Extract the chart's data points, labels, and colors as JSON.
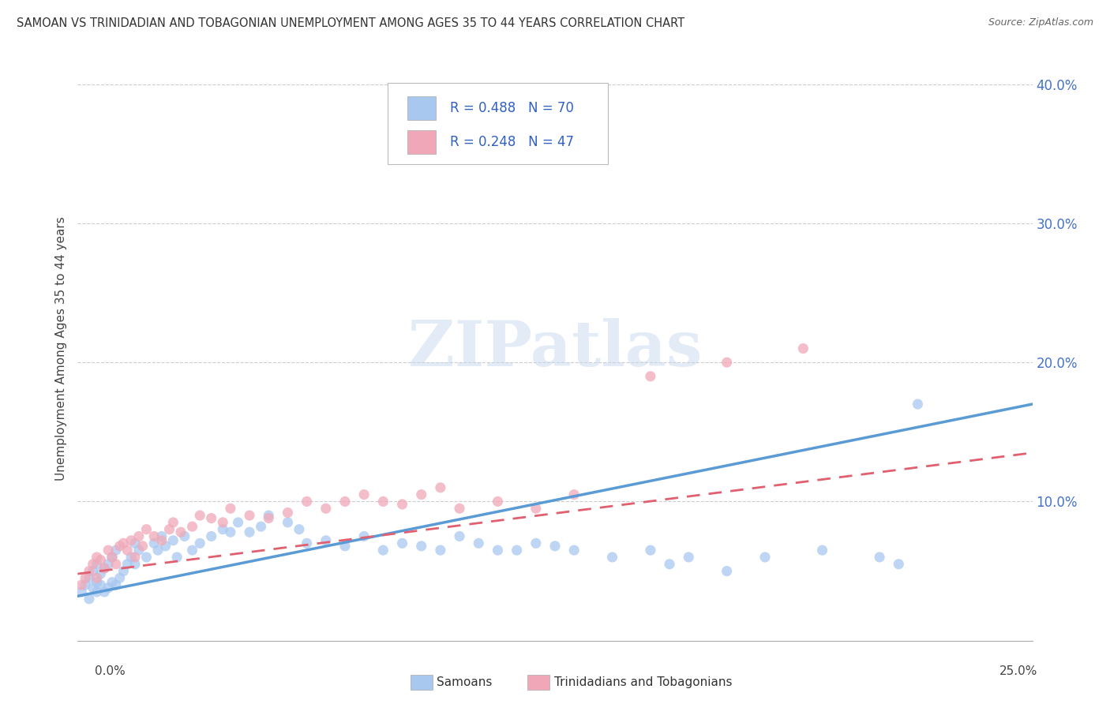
{
  "title": "SAMOAN VS TRINIDADIAN AND TOBAGONIAN UNEMPLOYMENT AMONG AGES 35 TO 44 YEARS CORRELATION CHART",
  "source": "Source: ZipAtlas.com",
  "ylabel": "Unemployment Among Ages 35 to 44 years",
  "xlim": [
    0.0,
    0.25
  ],
  "ylim": [
    0.0,
    0.42
  ],
  "ytick_vals": [
    0.0,
    0.1,
    0.2,
    0.3,
    0.4
  ],
  "ytick_labels": [
    "",
    "10.0%",
    "20.0%",
    "30.0%",
    "40.0%"
  ],
  "color_samoan": "#a8c8f0",
  "color_trinidadian": "#f0a8b8",
  "color_samoan_line": "#5b9bd5",
  "color_trinidadian_line": "#e06070",
  "color_text_blue": "#3060c0",
  "watermark_text": "ZIPatlas",
  "background_color": "#ffffff",
  "grid_color": "#cccccc",
  "samoan_x": [
    0.001,
    0.002,
    0.003,
    0.003,
    0.004,
    0.004,
    0.005,
    0.005,
    0.005,
    0.006,
    0.006,
    0.007,
    0.007,
    0.008,
    0.008,
    0.009,
    0.009,
    0.01,
    0.01,
    0.011,
    0.012,
    0.013,
    0.014,
    0.015,
    0.015,
    0.016,
    0.018,
    0.02,
    0.021,
    0.022,
    0.023,
    0.025,
    0.026,
    0.028,
    0.03,
    0.032,
    0.035,
    0.038,
    0.04,
    0.042,
    0.045,
    0.048,
    0.05,
    0.055,
    0.058,
    0.06,
    0.065,
    0.07,
    0.075,
    0.08,
    0.085,
    0.09,
    0.095,
    0.1,
    0.105,
    0.11,
    0.115,
    0.12,
    0.125,
    0.13,
    0.14,
    0.15,
    0.155,
    0.16,
    0.17,
    0.18,
    0.195,
    0.21,
    0.215,
    0.22
  ],
  "samoan_y": [
    0.035,
    0.04,
    0.03,
    0.045,
    0.038,
    0.05,
    0.035,
    0.042,
    0.055,
    0.04,
    0.048,
    0.035,
    0.052,
    0.038,
    0.055,
    0.042,
    0.06,
    0.04,
    0.065,
    0.045,
    0.05,
    0.055,
    0.06,
    0.055,
    0.07,
    0.065,
    0.06,
    0.07,
    0.065,
    0.075,
    0.068,
    0.072,
    0.06,
    0.075,
    0.065,
    0.07,
    0.075,
    0.08,
    0.078,
    0.085,
    0.078,
    0.082,
    0.09,
    0.085,
    0.08,
    0.07,
    0.072,
    0.068,
    0.075,
    0.065,
    0.07,
    0.068,
    0.065,
    0.075,
    0.07,
    0.065,
    0.065,
    0.07,
    0.068,
    0.065,
    0.06,
    0.065,
    0.055,
    0.06,
    0.05,
    0.06,
    0.065,
    0.06,
    0.055,
    0.17
  ],
  "trinidadian_x": [
    0.001,
    0.002,
    0.003,
    0.004,
    0.005,
    0.005,
    0.006,
    0.007,
    0.008,
    0.009,
    0.01,
    0.011,
    0.012,
    0.013,
    0.014,
    0.015,
    0.016,
    0.017,
    0.018,
    0.02,
    0.022,
    0.024,
    0.025,
    0.027,
    0.03,
    0.032,
    0.035,
    0.038,
    0.04,
    0.045,
    0.05,
    0.055,
    0.06,
    0.065,
    0.07,
    0.075,
    0.08,
    0.085,
    0.09,
    0.095,
    0.1,
    0.11,
    0.12,
    0.13,
    0.15,
    0.17,
    0.19
  ],
  "trinidadian_y": [
    0.04,
    0.045,
    0.05,
    0.055,
    0.045,
    0.06,
    0.058,
    0.052,
    0.065,
    0.06,
    0.055,
    0.068,
    0.07,
    0.065,
    0.072,
    0.06,
    0.075,
    0.068,
    0.08,
    0.075,
    0.072,
    0.08,
    0.085,
    0.078,
    0.082,
    0.09,
    0.088,
    0.085,
    0.095,
    0.09,
    0.088,
    0.092,
    0.1,
    0.095,
    0.1,
    0.105,
    0.1,
    0.098,
    0.105,
    0.11,
    0.095,
    0.1,
    0.095,
    0.105,
    0.19,
    0.2,
    0.21
  ],
  "samoan_line_x0": 0.0,
  "samoan_line_x1": 0.25,
  "samoan_line_y0": 0.032,
  "samoan_line_y1": 0.17,
  "trini_line_x0": 0.0,
  "trini_line_x1": 0.25,
  "trini_line_y0": 0.048,
  "trini_line_y1": 0.135
}
